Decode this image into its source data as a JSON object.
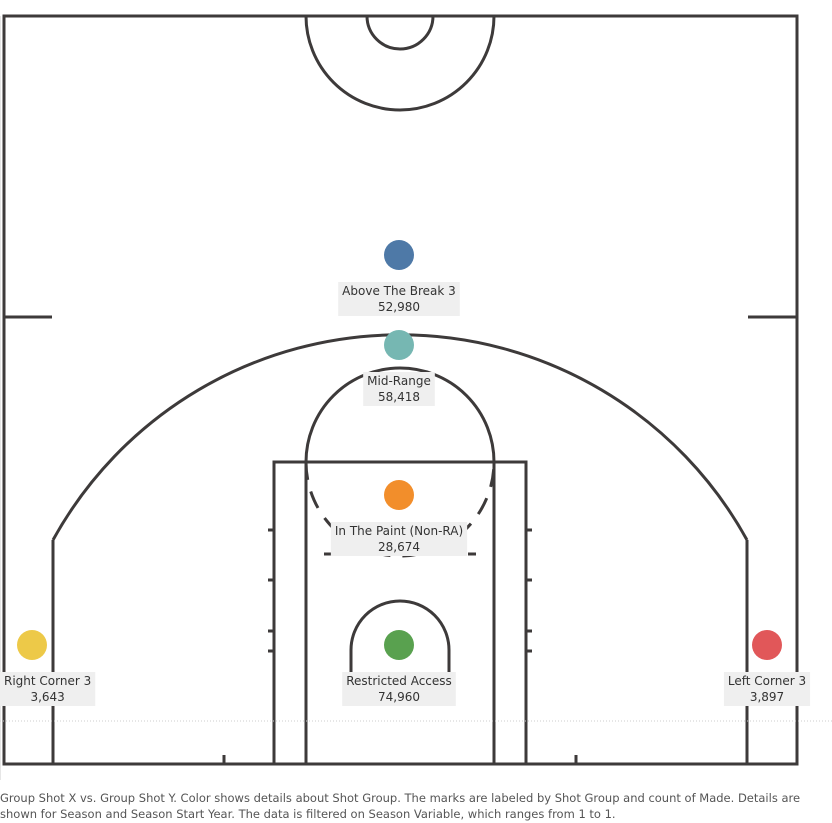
{
  "chart_data": {
    "type": "scatter",
    "xlabel": "Group Shot X",
    "ylabel": "Group Shot Y",
    "color_field": "Shot Group",
    "label_field": "count of Made",
    "points": [
      {
        "name": "Above The Break 3",
        "value": 52980,
        "value_text": "52,980",
        "color": "#4e79a7"
      },
      {
        "name": "Mid-Range",
        "value": 58418,
        "value_text": "58,418",
        "color": "#76b7b2"
      },
      {
        "name": "In The Paint (Non-RA)",
        "value": 28674,
        "value_text": "28,674",
        "color": "#f28e2b"
      },
      {
        "name": "Restricted Access",
        "value": 74960,
        "value_text": "74,960",
        "color": "#59a14f"
      },
      {
        "name": "Right Corner 3",
        "value": 3643,
        "value_text": "3,643",
        "color": "#edc948"
      },
      {
        "name": "Left Corner 3",
        "value": 3897,
        "value_text": "3,897",
        "color": "#e15759"
      }
    ]
  },
  "caption": {
    "text": "Group Shot X vs. Group Shot Y.  Color shows details about Shot Group.  The marks are labeled by Shot Group and count of Made.  Details are shown for Season and Season Start Year. The data is filtered on Season Variable, which ranges from 1 to 1."
  }
}
